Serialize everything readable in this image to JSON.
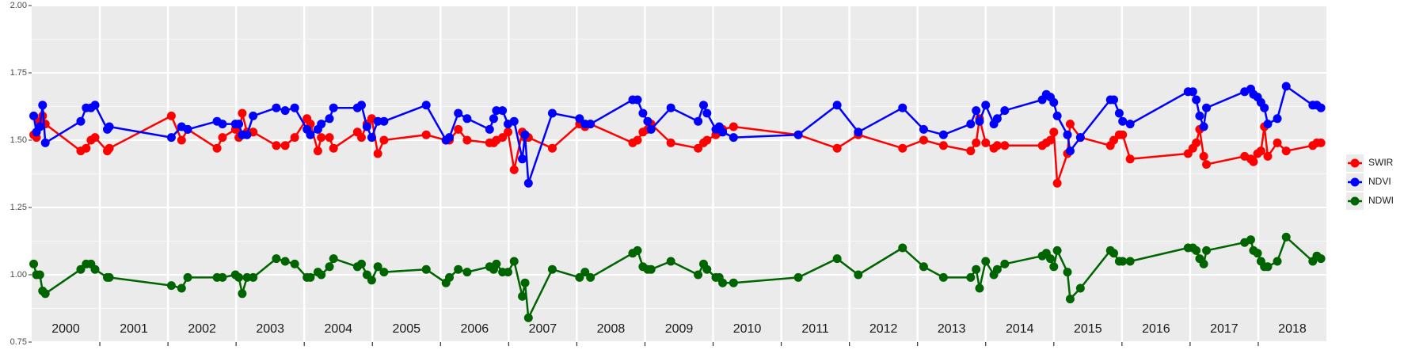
{
  "chart_data": {
    "type": "line",
    "xlim": [
      2000,
      2019
    ],
    "ylim": [
      0.75,
      2.0
    ],
    "yticks": [
      {
        "value": 0.75,
        "label": "0.75"
      },
      {
        "value": 1.0,
        "label": "1.00"
      },
      {
        "value": 1.25,
        "label": "1.25"
      },
      {
        "value": 1.5,
        "label": "1.50"
      },
      {
        "value": 1.75,
        "label": "1.75"
      },
      {
        "value": 2.0,
        "label": "2.00"
      }
    ],
    "yminor": [
      0.875,
      1.125,
      1.375,
      1.625,
      1.875
    ],
    "xgrid": [
      2001,
      2002,
      2003,
      2004,
      2005,
      2006,
      2007,
      2008,
      2009,
      2010,
      2011,
      2012,
      2013,
      2014,
      2015,
      2016,
      2017,
      2018
    ],
    "xticks": [
      {
        "value": 2000.5,
        "label": "2000"
      },
      {
        "value": 2001.5,
        "label": "2001"
      },
      {
        "value": 2002.5,
        "label": "2002"
      },
      {
        "value": 2003.5,
        "label": "2003"
      },
      {
        "value": 2004.5,
        "label": "2004"
      },
      {
        "value": 2005.5,
        "label": "2005"
      },
      {
        "value": 2006.5,
        "label": "2006"
      },
      {
        "value": 2007.5,
        "label": "2007"
      },
      {
        "value": 2008.5,
        "label": "2008"
      },
      {
        "value": 2009.5,
        "label": "2009"
      },
      {
        "value": 2010.5,
        "label": "2010"
      },
      {
        "value": 2011.5,
        "label": "2011"
      },
      {
        "value": 2012.5,
        "label": "2012"
      },
      {
        "value": 2013.5,
        "label": "2013"
      },
      {
        "value": 2014.5,
        "label": "2014"
      },
      {
        "value": 2015.5,
        "label": "2015"
      },
      {
        "value": 2016.5,
        "label": "2016"
      },
      {
        "value": 2017.5,
        "label": "2017"
      },
      {
        "value": 2018.5,
        "label": "2018"
      }
    ],
    "grid": true,
    "legend": "right",
    "x": [
      2000.03,
      2000.07,
      2000.12,
      2000.16,
      2000.2,
      2000.72,
      2000.8,
      2000.87,
      2000.93,
      2001.11,
      2001.14,
      2002.05,
      2002.2,
      2002.29,
      2002.72,
      2002.8,
      2002.99,
      2003.04,
      2003.09,
      2003.16,
      2003.25,
      2003.59,
      2003.72,
      2003.86,
      2004.04,
      2004.09,
      2004.2,
      2004.25,
      2004.37,
      2004.43,
      2004.78,
      2004.84,
      2004.92,
      2004.99,
      2005.08,
      2005.17,
      2005.79,
      2006.08,
      2006.13,
      2006.26,
      2006.39,
      2006.72,
      2006.78,
      2006.82,
      2006.91,
      2006.99,
      2007.08,
      2007.2,
      2007.24,
      2007.29,
      2007.64,
      2008.04,
      2008.12,
      2008.2,
      2008.82,
      2008.89,
      2008.97,
      2009.04,
      2009.09,
      2009.38,
      2009.78,
      2009.86,
      2009.91,
      2010.04,
      2010.09,
      2010.14,
      2010.3,
      2011.25,
      2011.82,
      2012.13,
      2012.78,
      2013.09,
      2013.38,
      2013.78,
      2013.86,
      2013.91,
      2014.0,
      2014.12,
      2014.17,
      2014.28,
      2014.83,
      2014.89,
      2014.95,
      2015.0,
      2015.05,
      2015.2,
      2015.24,
      2015.39,
      2015.83,
      2015.88,
      2015.96,
      2016.01,
      2016.12,
      2016.97,
      2017.04,
      2017.09,
      2017.14,
      2017.2,
      2017.24,
      2017.8,
      2017.89,
      2017.93,
      2017.99,
      2018.04,
      2018.09,
      2018.14,
      2018.28,
      2018.41,
      2018.8,
      2018.86,
      2018.92
    ],
    "series": [
      {
        "name": "SWIR",
        "color": "#ff0000",
        "values": [
          1.52,
          1.51,
          1.57,
          1.59,
          1.56,
          1.46,
          1.47,
          1.5,
          1.51,
          1.46,
          1.47,
          1.59,
          1.5,
          1.54,
          1.47,
          1.51,
          1.54,
          1.51,
          1.6,
          1.53,
          1.53,
          1.48,
          1.48,
          1.51,
          1.58,
          1.56,
          1.46,
          1.51,
          1.51,
          1.47,
          1.53,
          1.51,
          1.56,
          1.58,
          1.45,
          1.5,
          1.52,
          1.5,
          1.5,
          1.54,
          1.5,
          1.49,
          1.49,
          1.5,
          1.51,
          1.53,
          1.39,
          1.53,
          1.51,
          1.51,
          1.47,
          1.56,
          1.55,
          1.56,
          1.49,
          1.5,
          1.53,
          1.54,
          1.56,
          1.49,
          1.47,
          1.49,
          1.5,
          1.52,
          1.53,
          1.54,
          1.55,
          1.52,
          1.47,
          1.52,
          1.47,
          1.5,
          1.48,
          1.46,
          1.49,
          1.58,
          1.49,
          1.47,
          1.48,
          1.48,
          1.48,
          1.49,
          1.5,
          1.53,
          1.34,
          1.45,
          1.56,
          1.51,
          1.48,
          1.5,
          1.52,
          1.52,
          1.43,
          1.45,
          1.47,
          1.49,
          1.54,
          1.44,
          1.41,
          1.44,
          1.43,
          1.42,
          1.45,
          1.46,
          1.55,
          1.44,
          1.49,
          1.46,
          1.48,
          1.49,
          1.49
        ]
      },
      {
        "name": "NDVI",
        "color": "#0000ff",
        "values": [
          1.59,
          1.53,
          1.55,
          1.63,
          1.49,
          1.57,
          1.62,
          1.62,
          1.63,
          1.54,
          1.55,
          1.51,
          1.55,
          1.54,
          1.57,
          1.56,
          1.56,
          1.56,
          1.52,
          1.52,
          1.59,
          1.62,
          1.61,
          1.62,
          1.54,
          1.52,
          1.54,
          1.56,
          1.58,
          1.62,
          1.62,
          1.63,
          1.55,
          1.51,
          1.57,
          1.57,
          1.63,
          1.5,
          1.51,
          1.6,
          1.58,
          1.54,
          1.58,
          1.61,
          1.61,
          1.56,
          1.57,
          1.43,
          1.52,
          1.34,
          1.6,
          1.58,
          1.56,
          1.56,
          1.65,
          1.65,
          1.6,
          1.57,
          1.54,
          1.62,
          1.57,
          1.63,
          1.6,
          1.54,
          1.55,
          1.53,
          1.51,
          1.52,
          1.63,
          1.53,
          1.62,
          1.54,
          1.52,
          1.56,
          1.61,
          1.57,
          1.63,
          1.56,
          1.58,
          1.61,
          1.65,
          1.67,
          1.66,
          1.64,
          1.59,
          1.52,
          1.46,
          1.51,
          1.65,
          1.65,
          1.6,
          1.57,
          1.56,
          1.68,
          1.68,
          1.65,
          1.59,
          1.55,
          1.62,
          1.68,
          1.69,
          1.67,
          1.66,
          1.64,
          1.62,
          1.56,
          1.58,
          1.7,
          1.63,
          1.63,
          1.62
        ]
      },
      {
        "name": "NDWI",
        "color": "#006400",
        "values": [
          1.04,
          1.0,
          1.0,
          0.94,
          0.93,
          1.02,
          1.04,
          1.04,
          1.02,
          0.99,
          0.99,
          0.96,
          0.95,
          0.99,
          0.99,
          0.99,
          1.0,
          0.99,
          0.93,
          0.99,
          0.99,
          1.06,
          1.05,
          1.04,
          0.99,
          0.99,
          1.01,
          1.0,
          1.03,
          1.06,
          1.03,
          1.04,
          1.0,
          0.98,
          1.03,
          1.01,
          1.02,
          0.97,
          0.99,
          1.02,
          1.01,
          1.03,
          1.02,
          1.04,
          1.01,
          1.01,
          1.05,
          0.92,
          0.97,
          0.84,
          1.02,
          0.99,
          1.01,
          0.99,
          1.08,
          1.09,
          1.03,
          1.02,
          1.02,
          1.05,
          1.0,
          1.04,
          1.02,
          0.99,
          0.99,
          0.97,
          0.97,
          0.99,
          1.06,
          1.0,
          1.1,
          1.03,
          0.99,
          0.99,
          1.02,
          0.95,
          1.05,
          1.0,
          1.02,
          1.04,
          1.07,
          1.08,
          1.06,
          1.03,
          1.09,
          1.01,
          0.91,
          0.95,
          1.09,
          1.08,
          1.05,
          1.05,
          1.05,
          1.1,
          1.1,
          1.09,
          1.06,
          1.04,
          1.09,
          1.12,
          1.13,
          1.09,
          1.08,
          1.05,
          1.03,
          1.03,
          1.05,
          1.14,
          1.05,
          1.07,
          1.06
        ]
      }
    ]
  }
}
